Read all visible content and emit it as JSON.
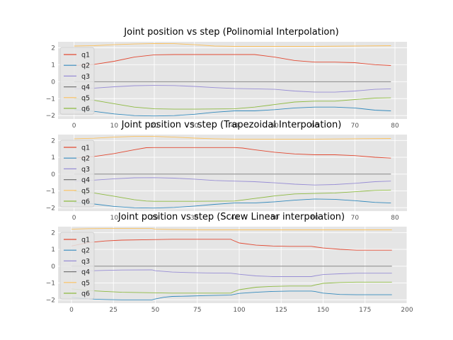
{
  "chart_data": [
    {
      "type": "line",
      "title": "Joint position vs step (Polinomial Interpolation)",
      "xlabel": "",
      "ylabel": "",
      "xlim": [
        -4,
        83
      ],
      "ylim": [
        -2.2,
        2.35
      ],
      "xticks": [
        0,
        10,
        20,
        30,
        40,
        50,
        60,
        70,
        80
      ],
      "yticks": [
        2,
        1,
        0,
        -1,
        -2
      ],
      "grid": true,
      "legend": "upper-left",
      "series": [
        {
          "name": "q1",
          "color": "#e24a33",
          "x": [
            0,
            5,
            10,
            15,
            20,
            25,
            30,
            40,
            45,
            50,
            55,
            60,
            65,
            70,
            75,
            79
          ],
          "y": [
            0.95,
            1.02,
            1.2,
            1.45,
            1.58,
            1.6,
            1.6,
            1.6,
            1.6,
            1.45,
            1.25,
            1.15,
            1.15,
            1.12,
            1.0,
            0.95
          ]
        },
        {
          "name": "q2",
          "color": "#348abd",
          "x": [
            0,
            5,
            10,
            15,
            20,
            25,
            30,
            35,
            40,
            45,
            50,
            55,
            60,
            65,
            70,
            75,
            79
          ],
          "y": [
            -1.65,
            -1.75,
            -1.9,
            -2.0,
            -2.02,
            -2.0,
            -1.92,
            -1.8,
            -1.72,
            -1.72,
            -1.65,
            -1.55,
            -1.5,
            -1.5,
            -1.55,
            -1.68,
            -1.72
          ]
        },
        {
          "name": "q3",
          "color": "#988ed5",
          "x": [
            0,
            5,
            10,
            15,
            20,
            25,
            30,
            35,
            40,
            45,
            50,
            55,
            60,
            65,
            70,
            75,
            79
          ],
          "y": [
            -0.42,
            -0.38,
            -0.3,
            -0.24,
            -0.22,
            -0.23,
            -0.28,
            -0.35,
            -0.4,
            -0.42,
            -0.45,
            -0.55,
            -0.62,
            -0.62,
            -0.55,
            -0.45,
            -0.42
          ]
        },
        {
          "name": "q4",
          "color": "#777777",
          "x": [
            0,
            79
          ],
          "y": [
            0,
            0
          ]
        },
        {
          "name": "q5",
          "color": "#fbc15e",
          "x": [
            0,
            5,
            10,
            15,
            20,
            25,
            30,
            35,
            40,
            50,
            60,
            70,
            79
          ],
          "y": [
            2.1,
            2.12,
            2.18,
            2.22,
            2.25,
            2.24,
            2.18,
            2.1,
            2.08,
            2.08,
            2.08,
            2.1,
            2.12
          ]
        },
        {
          "name": "q6",
          "color": "#8eba42",
          "x": [
            0,
            5,
            10,
            15,
            20,
            25,
            30,
            40,
            45,
            50,
            55,
            60,
            65,
            70,
            75,
            79
          ],
          "y": [
            -1.0,
            -1.1,
            -1.3,
            -1.5,
            -1.6,
            -1.62,
            -1.62,
            -1.6,
            -1.5,
            -1.35,
            -1.2,
            -1.15,
            -1.15,
            -1.05,
            -0.97,
            -0.95
          ]
        }
      ]
    },
    {
      "type": "line",
      "title": "Joint position vs step (Trapezoidal Interpolation)",
      "xlabel": "",
      "ylabel": "",
      "xlim": [
        -4,
        83
      ],
      "ylim": [
        -2.2,
        2.35
      ],
      "xticks": [
        0,
        10,
        20,
        30,
        40,
        50,
        60,
        70,
        80
      ],
      "yticks": [
        2,
        1,
        0,
        -1,
        -2
      ],
      "grid": true,
      "legend": "upper-left",
      "series": [
        {
          "name": "q1",
          "color": "#e24a33",
          "x": [
            0,
            5,
            10,
            15,
            18,
            20,
            25,
            30,
            40,
            42,
            45,
            50,
            55,
            60,
            65,
            70,
            75,
            79
          ],
          "y": [
            0.95,
            1.05,
            1.22,
            1.45,
            1.57,
            1.58,
            1.58,
            1.58,
            1.58,
            1.55,
            1.45,
            1.3,
            1.2,
            1.15,
            1.15,
            1.1,
            1.0,
            0.95
          ]
        },
        {
          "name": "q2",
          "color": "#348abd",
          "x": [
            0,
            5,
            10,
            15,
            20,
            25,
            30,
            35,
            40,
            45,
            50,
            55,
            60,
            65,
            70,
            75,
            79
          ],
          "y": [
            -1.68,
            -1.78,
            -1.92,
            -2.0,
            -2.02,
            -1.98,
            -1.9,
            -1.8,
            -1.72,
            -1.72,
            -1.65,
            -1.55,
            -1.48,
            -1.5,
            -1.58,
            -1.68,
            -1.72
          ]
        },
        {
          "name": "q3",
          "color": "#988ed5",
          "x": [
            0,
            5,
            10,
            15,
            20,
            25,
            30,
            35,
            40,
            45,
            50,
            55,
            60,
            65,
            70,
            75,
            79
          ],
          "y": [
            -0.42,
            -0.36,
            -0.28,
            -0.22,
            -0.21,
            -0.24,
            -0.3,
            -0.38,
            -0.42,
            -0.45,
            -0.52,
            -0.6,
            -0.65,
            -0.62,
            -0.55,
            -0.45,
            -0.42
          ]
        },
        {
          "name": "q4",
          "color": "#777777",
          "x": [
            0,
            79
          ],
          "y": [
            0,
            0
          ]
        },
        {
          "name": "q5",
          "color": "#fbc15e",
          "x": [
            0,
            5,
            10,
            15,
            20,
            25,
            30,
            35,
            40,
            50,
            60,
            70,
            79
          ],
          "y": [
            2.1,
            2.13,
            2.2,
            2.24,
            2.24,
            2.2,
            2.14,
            2.1,
            2.08,
            2.08,
            2.08,
            2.1,
            2.12
          ]
        },
        {
          "name": "q6",
          "color": "#8eba42",
          "x": [
            0,
            5,
            10,
            15,
            18,
            20,
            25,
            30,
            40,
            45,
            50,
            55,
            60,
            65,
            70,
            75,
            79
          ],
          "y": [
            -1.0,
            -1.12,
            -1.32,
            -1.52,
            -1.6,
            -1.62,
            -1.62,
            -1.62,
            -1.6,
            -1.45,
            -1.3,
            -1.18,
            -1.15,
            -1.12,
            -1.05,
            -0.97,
            -0.95
          ]
        }
      ]
    },
    {
      "type": "line",
      "title": "Joint position vs step (Screw Linear interpolation)",
      "xlabel": "",
      "ylabel": "",
      "xlim": [
        -8,
        200
      ],
      "ylim": [
        -2.2,
        2.35
      ],
      "xticks": [
        0,
        25,
        50,
        75,
        100,
        125,
        150,
        175,
        200
      ],
      "yticks": [
        2,
        1,
        0,
        -1,
        -2
      ],
      "grid": true,
      "legend": "upper-left",
      "series": [
        {
          "name": "q1",
          "color": "#e24a33",
          "x": [
            0,
            10,
            20,
            30,
            48,
            60,
            80,
            95,
            96,
            100,
            110,
            120,
            130,
            143,
            145,
            150,
            160,
            170,
            180,
            191
          ],
          "y": [
            1.2,
            1.4,
            1.5,
            1.55,
            1.58,
            1.6,
            1.6,
            1.6,
            1.55,
            1.38,
            1.25,
            1.2,
            1.18,
            1.18,
            1.15,
            1.08,
            1.0,
            0.95,
            0.95,
            0.95
          ]
        },
        {
          "name": "q2",
          "color": "#348abd",
          "x": [
            0,
            10,
            20,
            30,
            48,
            50,
            55,
            60,
            70,
            80,
            95,
            96,
            100,
            110,
            120,
            130,
            143,
            145,
            150,
            160,
            170,
            180,
            191
          ],
          "y": [
            -1.85,
            -1.95,
            -1.98,
            -2.0,
            -2.0,
            -1.95,
            -1.85,
            -1.8,
            -1.78,
            -1.75,
            -1.72,
            -1.7,
            -1.62,
            -1.55,
            -1.5,
            -1.48,
            -1.48,
            -1.5,
            -1.6,
            -1.68,
            -1.7,
            -1.7,
            -1.7
          ]
        },
        {
          "name": "q3",
          "color": "#988ed5",
          "x": [
            0,
            10,
            20,
            30,
            48,
            50,
            60,
            70,
            80,
            95,
            100,
            110,
            120,
            130,
            143,
            145,
            150,
            160,
            170,
            180,
            191
          ],
          "y": [
            -0.3,
            -0.28,
            -0.25,
            -0.23,
            -0.22,
            -0.27,
            -0.35,
            -0.38,
            -0.4,
            -0.42,
            -0.48,
            -0.58,
            -0.62,
            -0.62,
            -0.62,
            -0.58,
            -0.5,
            -0.45,
            -0.42,
            -0.42,
            -0.42
          ]
        },
        {
          "name": "q4",
          "color": "#777777",
          "x": [
            0,
            191
          ],
          "y": [
            0,
            0
          ]
        },
        {
          "name": "q5",
          "color": "#fbc15e",
          "x": [
            0,
            10,
            20,
            30,
            48,
            50,
            60,
            80,
            100,
            150,
            191
          ],
          "y": [
            2.2,
            2.23,
            2.24,
            2.24,
            2.24,
            2.2,
            2.18,
            2.16,
            2.16,
            2.16,
            2.16
          ]
        },
        {
          "name": "q6",
          "color": "#8eba42",
          "x": [
            0,
            10,
            20,
            30,
            48,
            60,
            80,
            95,
            96,
            100,
            110,
            120,
            130,
            143,
            145,
            150,
            160,
            170,
            180,
            191
          ],
          "y": [
            -1.35,
            -1.45,
            -1.5,
            -1.55,
            -1.58,
            -1.6,
            -1.6,
            -1.6,
            -1.55,
            -1.4,
            -1.25,
            -1.2,
            -1.18,
            -1.18,
            -1.12,
            -1.02,
            -0.97,
            -0.95,
            -0.95,
            -0.95
          ]
        }
      ]
    }
  ]
}
